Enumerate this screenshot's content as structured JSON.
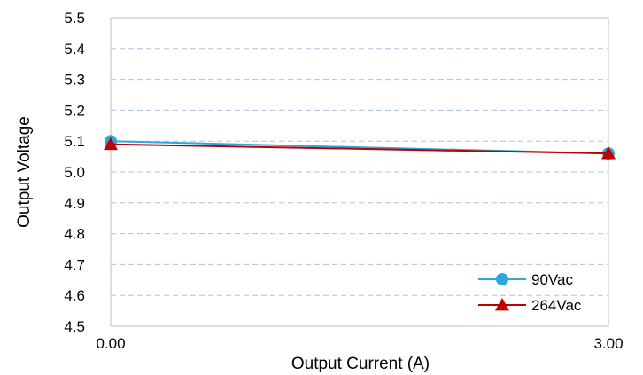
{
  "chart_data": {
    "type": "line",
    "xlabel": "Output Current (A)",
    "ylabel": "Output Voltage",
    "xlim": [
      0,
      3
    ],
    "ylim": [
      4.5,
      5.5
    ],
    "x_ticks": [
      "0.00",
      "3.00"
    ],
    "y_ticks": [
      "4.5",
      "4.6",
      "4.7",
      "4.8",
      "4.9",
      "5.0",
      "5.1",
      "5.2",
      "5.3",
      "5.4",
      "5.5"
    ],
    "grid": "horizontal-dashed",
    "legend_position": "bottom-right",
    "series": [
      {
        "name": "90Vac",
        "marker": "circle",
        "color": "#29a9e0",
        "x": [
          0.0,
          3.0
        ],
        "y": [
          5.1,
          5.06
        ]
      },
      {
        "name": "264Vac",
        "marker": "triangle",
        "color": "#c00000",
        "x": [
          0.0,
          3.0
        ],
        "y": [
          5.09,
          5.06
        ]
      }
    ]
  }
}
